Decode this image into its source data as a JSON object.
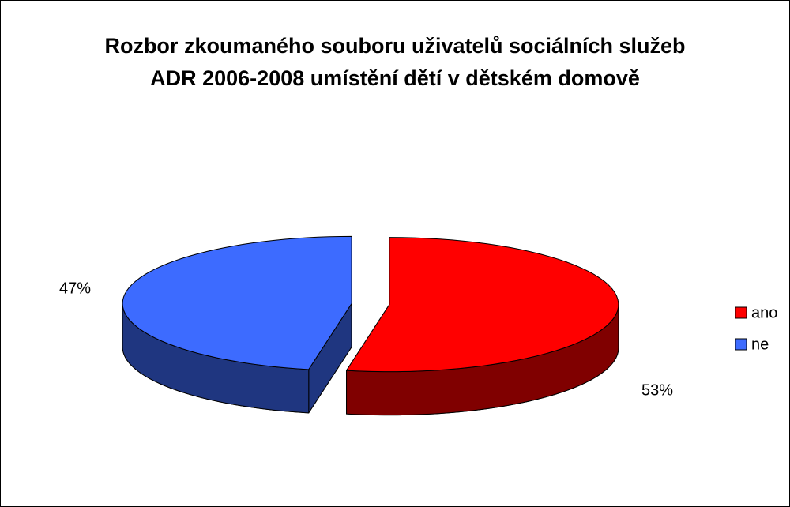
{
  "chart_data": {
    "type": "pie",
    "title": "Rozbor zkoumaného souboru uživatelů sociálních služeb ADR 2006-2008 umístění dětí v dětském domově",
    "categories": [
      "ano",
      "ne"
    ],
    "values": [
      53,
      47
    ],
    "value_labels": [
      "53%",
      "47%"
    ],
    "colors": [
      "#ff0000",
      "#3d6bff"
    ],
    "legend": "right"
  }
}
